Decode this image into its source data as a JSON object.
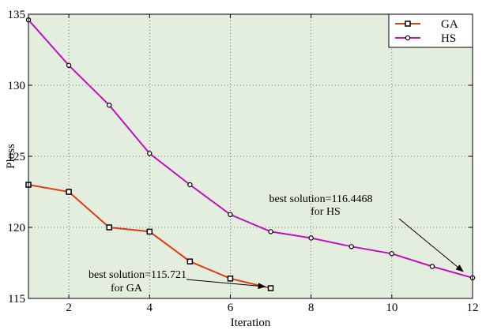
{
  "chart_data": {
    "type": "line",
    "title": "",
    "xlabel": "Iteration",
    "ylabel": "Ploss",
    "xlim": [
      1,
      12
    ],
    "ylim": [
      115,
      135
    ],
    "xticks": [
      2,
      4,
      6,
      8,
      10,
      12
    ],
    "yticks": [
      115,
      120,
      125,
      130,
      135
    ],
    "grid": true,
    "legend_position": "top-right",
    "background_color": "#e3eedf",
    "series": [
      {
        "name": "GA",
        "color": "#e03c14",
        "marker": "square",
        "x": [
          1,
          2,
          3,
          4,
          5,
          6,
          7
        ],
        "values": [
          123.0,
          122.5,
          120.0,
          119.7,
          117.6,
          116.4,
          115.72
        ]
      },
      {
        "name": "HS",
        "color": "#c010c0",
        "marker": "circle",
        "x": [
          1,
          2,
          3,
          4,
          5,
          6,
          7,
          8,
          9,
          10,
          11,
          12
        ],
        "values": [
          134.6,
          131.4,
          128.6,
          125.2,
          123.0,
          120.9,
          119.7,
          119.25,
          118.65,
          118.15,
          117.25,
          116.45
        ]
      }
    ],
    "annotations": [
      {
        "line1": "best solution=115.721",
        "line2": "for GA",
        "target_series": "GA",
        "target_x": 7,
        "target_y": 115.72
      },
      {
        "line1": "best solution=116.4468",
        "line2": "for HS",
        "target_series": "HS",
        "target_x": 12,
        "target_y": 116.45
      }
    ]
  }
}
